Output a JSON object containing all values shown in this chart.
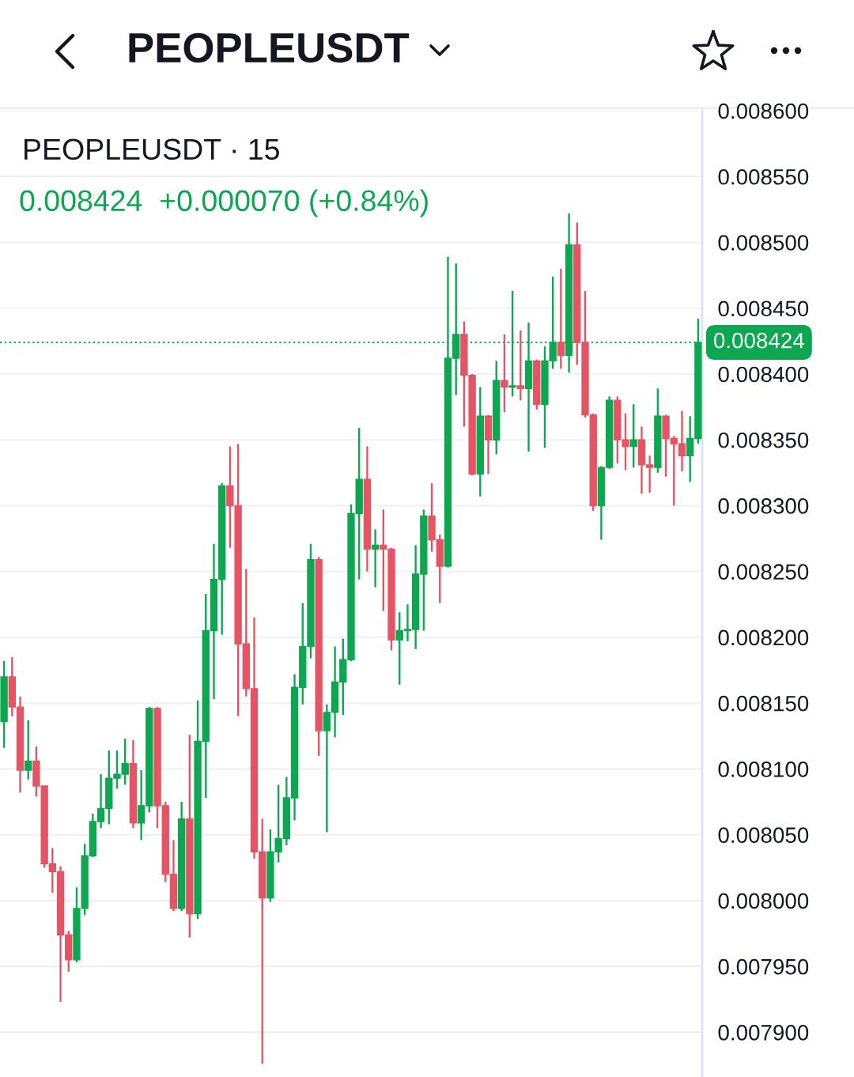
{
  "chart_data": {
    "type": "candlestick",
    "title": "PEOPLEUSDT",
    "subtitle": "PEOPLEUSDT · 15",
    "annotations": [
      "0.008424  +0.000070 (+0.84%)"
    ],
    "categories": [
      null,
      null,
      null,
      null,
      null,
      null,
      null,
      null,
      null,
      null,
      null,
      null,
      null,
      null,
      null,
      null,
      null,
      null,
      null,
      null,
      null,
      null,
      null,
      null,
      null,
      null,
      null,
      null,
      null,
      null,
      null,
      null,
      null,
      null,
      null,
      null,
      null,
      null,
      null,
      null,
      null,
      null,
      null,
      null,
      null,
      null,
      null,
      null,
      null,
      null,
      null,
      null,
      null,
      null,
      null,
      null,
      null,
      null,
      null,
      null,
      null,
      null,
      null,
      null,
      null,
      null,
      null,
      null,
      null,
      null,
      null,
      null,
      null,
      null,
      null,
      null,
      null,
      null,
      null,
      null,
      null,
      null,
      null,
      null,
      null,
      null,
      null
    ],
    "ohlc": [
      [
        0.008136,
        0.008182,
        0.008116,
        0.00817
      ],
      [
        0.00817,
        0.008185,
        0.00814,
        0.008147
      ],
      [
        0.008147,
        0.008155,
        0.008082,
        0.008099
      ],
      [
        0.008099,
        0.008137,
        0.008092,
        0.008106
      ],
      [
        0.008106,
        0.008117,
        0.008079,
        0.008087
      ],
      [
        0.008087,
        0.008087,
        0.008025,
        0.008028
      ],
      [
        0.008028,
        0.00804,
        0.008006,
        0.008022
      ],
      [
        0.008022,
        0.008026,
        0.007923,
        0.007974
      ],
      [
        0.007974,
        0.007977,
        0.007946,
        0.007955
      ],
      [
        0.007955,
        0.00801,
        0.007953,
        0.007994
      ],
      [
        0.007994,
        0.008043,
        0.007989,
        0.008034
      ],
      [
        0.008034,
        0.008066,
        0.008033,
        0.00806
      ],
      [
        0.00806,
        0.008096,
        0.008055,
        0.00807
      ],
      [
        0.00807,
        0.008114,
        0.008058,
        0.008093
      ],
      [
        0.008093,
        0.008114,
        0.008085,
        0.008096
      ],
      [
        0.008096,
        0.008123,
        0.008088,
        0.008104
      ],
      [
        0.008104,
        0.008122,
        0.008055,
        0.008059
      ],
      [
        0.008059,
        0.008099,
        0.008046,
        0.008072
      ],
      [
        0.008072,
        0.008147,
        0.008067,
        0.008146
      ],
      [
        0.008146,
        0.008147,
        0.008055,
        0.008072
      ],
      [
        0.008072,
        0.008075,
        0.008014,
        0.00802
      ],
      [
        0.00802,
        0.008046,
        0.007992,
        0.007994
      ],
      [
        0.007994,
        0.008075,
        0.007992,
        0.008062
      ],
      [
        0.008062,
        0.008126,
        0.007972,
        0.00799
      ],
      [
        0.00799,
        0.008152,
        0.007986,
        0.008121
      ],
      [
        0.008121,
        0.008233,
        0.008078,
        0.008205
      ],
      [
        0.008205,
        0.008271,
        0.008153,
        0.008244
      ],
      [
        0.008244,
        0.008317,
        0.008202,
        0.008315
      ],
      [
        0.008315,
        0.008345,
        0.008268,
        0.0083
      ],
      [
        0.0083,
        0.008347,
        0.00814,
        0.008195
      ],
      [
        0.008195,
        0.008252,
        0.008155,
        0.008161
      ],
      [
        0.008161,
        0.008215,
        0.008032,
        0.008037
      ],
      [
        0.008037,
        0.008062,
        0.007876,
        0.008002
      ],
      [
        0.008002,
        0.008054,
        0.007999,
        0.008037
      ],
      [
        0.008037,
        0.008088,
        0.008029,
        0.008047
      ],
      [
        0.008047,
        0.008094,
        0.008042,
        0.008078
      ],
      [
        0.008078,
        0.008172,
        0.008061,
        0.008162
      ],
      [
        0.008162,
        0.008226,
        0.008149,
        0.008193
      ],
      [
        0.008193,
        0.008271,
        0.008184,
        0.008259
      ],
      [
        0.008259,
        0.008261,
        0.00811,
        0.008129
      ],
      [
        0.008129,
        0.008149,
        0.008052,
        0.008143
      ],
      [
        0.008143,
        0.008193,
        0.008124,
        0.008166
      ],
      [
        0.008166,
        0.008199,
        0.008141,
        0.008183
      ],
      [
        0.008183,
        0.008301,
        0.008182,
        0.008294
      ],
      [
        0.008294,
        0.008359,
        0.008244,
        0.00832
      ],
      [
        0.00832,
        0.008345,
        0.00825,
        0.008267
      ],
      [
        0.008267,
        0.008282,
        0.008238,
        0.00827
      ],
      [
        0.00827,
        0.008297,
        0.00822,
        0.008267
      ],
      [
        0.008267,
        0.008268,
        0.00819,
        0.008198
      ],
      [
        0.008198,
        0.008219,
        0.008164,
        0.008205
      ],
      [
        0.008205,
        0.008225,
        0.008197,
        0.008206
      ],
      [
        0.008206,
        0.00827,
        0.008191,
        0.008248
      ],
      [
        0.008248,
        0.008297,
        0.008205,
        0.008292
      ],
      [
        0.008292,
        0.008317,
        0.008265,
        0.008274
      ],
      [
        0.008274,
        0.008278,
        0.008226,
        0.008254
      ],
      [
        0.008254,
        0.008489,
        0.008253,
        0.008412
      ],
      [
        0.008412,
        0.008484,
        0.008384,
        0.00843
      ],
      [
        0.00843,
        0.00844,
        0.00836,
        0.008399
      ],
      [
        0.008399,
        0.0084,
        0.008323,
        0.008324
      ],
      [
        0.008324,
        0.00839,
        0.008307,
        0.008368
      ],
      [
        0.008368,
        0.008369,
        0.008324,
        0.00835
      ],
      [
        0.00835,
        0.00841,
        0.008339,
        0.008395
      ],
      [
        0.008395,
        0.00843,
        0.008371,
        0.00839
      ],
      [
        0.00839,
        0.008463,
        0.008383,
        0.008391
      ],
      [
        0.008391,
        0.008433,
        0.00838,
        0.008389
      ],
      [
        0.008389,
        0.008439,
        0.008341,
        0.00841
      ],
      [
        0.00841,
        0.008411,
        0.008373,
        0.008377
      ],
      [
        0.008377,
        0.008421,
        0.008344,
        0.00841
      ],
      [
        0.00841,
        0.008474,
        0.008404,
        0.008424
      ],
      [
        0.008424,
        0.00848,
        0.008404,
        0.008414
      ],
      [
        0.008414,
        0.008522,
        0.008401,
        0.008498
      ],
      [
        0.008498,
        0.008515,
        0.008407,
        0.008424
      ],
      [
        0.008424,
        0.008463,
        0.008367,
        0.008369
      ],
      [
        0.008369,
        0.00837,
        0.008296,
        0.0083
      ],
      [
        0.0083,
        0.00833,
        0.008274,
        0.008329
      ],
      [
        0.008329,
        0.008383,
        0.008328,
        0.00838
      ],
      [
        0.00838,
        0.008383,
        0.008332,
        0.00835
      ],
      [
        0.00835,
        0.00837,
        0.008327,
        0.008345
      ],
      [
        0.008345,
        0.008377,
        0.008329,
        0.00835
      ],
      [
        0.00835,
        0.00836,
        0.008309,
        0.008331
      ],
      [
        0.008331,
        0.008338,
        0.00831,
        0.008329
      ],
      [
        0.008329,
        0.008389,
        0.008325,
        0.008368
      ],
      [
        0.008368,
        0.008369,
        0.008322,
        0.008351
      ],
      [
        0.008351,
        0.008353,
        0.0083,
        0.008347
      ],
      [
        0.008347,
        0.008372,
        0.008326,
        0.008338
      ],
      [
        0.008338,
        0.008368,
        0.008318,
        0.008351
      ],
      [
        0.008351,
        0.008442,
        0.008347,
        0.008424
      ]
    ],
    "colors": [
      "#0ca750",
      "#e55464",
      "#e55464",
      "#0ca750",
      "#e55464",
      "#e55464",
      "#e55464",
      "#e55464",
      "#e55464",
      "#0ca750",
      "#0ca750",
      "#0ca750",
      "#0ca750",
      "#0ca750",
      "#0ca750",
      "#0ca750",
      "#e55464",
      "#0ca750",
      "#0ca750",
      "#e55464",
      "#e55464",
      "#e55464",
      "#0ca750",
      "#e55464",
      "#0ca750",
      "#0ca750",
      "#0ca750",
      "#0ca750",
      "#e55464",
      "#e55464",
      "#e55464",
      "#e55464",
      "#e55464",
      "#0ca750",
      "#0ca750",
      "#0ca750",
      "#0ca750",
      "#0ca750",
      "#0ca750",
      "#e55464",
      "#0ca750",
      "#0ca750",
      "#0ca750",
      "#0ca750",
      "#0ca750",
      "#e55464",
      "#0ca750",
      "#e55464",
      "#e55464",
      "#0ca750",
      "#0ca750",
      "#0ca750",
      "#0ca750",
      "#e55464",
      "#e55464",
      "#0ca750",
      "#0ca750",
      "#e55464",
      "#e55464",
      "#0ca750",
      "#e55464",
      "#0ca750",
      "#e55464",
      "#0ca750",
      "#e55464",
      "#0ca750",
      "#e55464",
      "#0ca750",
      "#0ca750",
      "#e55464",
      "#0ca750",
      "#e55464",
      "#e55464",
      "#e55464",
      "#0ca750",
      "#0ca750",
      "#e55464",
      "#e55464",
      "#0ca750",
      "#e55464",
      "#e55464",
      "#0ca750",
      "#e55464",
      "#e55464",
      "#e55464",
      "#0ca750",
      "#0ca750"
    ],
    "ylim": [
      0.007866,
      0.0086
    ],
    "yticks": [
      {
        "value": 0.0079,
        "label": "0.007900"
      },
      {
        "value": 0.00795,
        "label": "0.007950"
      },
      {
        "value": 0.008,
        "label": "0.008000"
      },
      {
        "value": 0.00805,
        "label": "0.008050"
      },
      {
        "value": 0.0081,
        "label": "0.008100"
      },
      {
        "value": 0.00815,
        "label": "0.008150"
      },
      {
        "value": 0.0082,
        "label": "0.008200"
      },
      {
        "value": 0.00825,
        "label": "0.008250"
      },
      {
        "value": 0.0083,
        "label": "0.008300"
      },
      {
        "value": 0.00835,
        "label": "0.008350"
      },
      {
        "value": 0.0084,
        "label": "0.008400"
      },
      {
        "value": 0.00845,
        "label": "0.008450"
      },
      {
        "value": 0.0085,
        "label": "0.008500"
      },
      {
        "value": 0.00855,
        "label": "0.008550"
      },
      {
        "value": 0.0086,
        "label": "0.008600"
      }
    ],
    "ref_lines": [
      {
        "axis": "y",
        "value": 0.008424,
        "label": "0.008424",
        "color": "#0ca750",
        "line_style": "dotted"
      }
    ],
    "grid": "y"
  }
}
